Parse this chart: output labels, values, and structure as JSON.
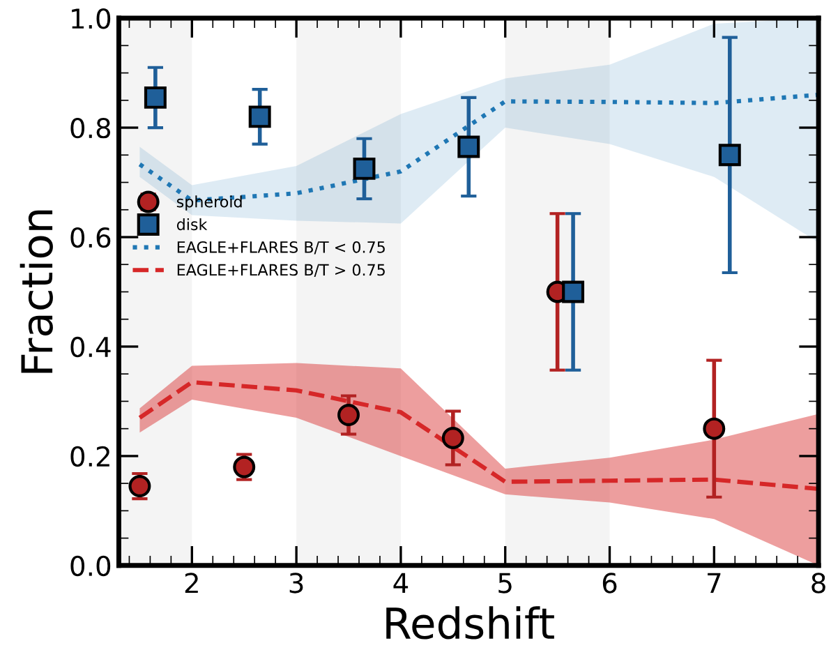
{
  "chart_data": {
    "type": "scatter",
    "xlabel": "Redshift",
    "ylabel": "Fraction",
    "xlim": [
      1.3,
      8
    ],
    "ylim": [
      0,
      1
    ],
    "xticks": [
      2,
      3,
      4,
      5,
      6,
      7,
      8
    ],
    "yticks": [
      {
        "value": 0,
        "label": "0.0"
      },
      0.2,
      0.4,
      0.6,
      0.8,
      {
        "value": 1,
        "label": "1.0"
      }
    ],
    "grid": false,
    "legend": "left",
    "bands": [
      {
        "axis": "x",
        "from": 1.3,
        "to": 2,
        "color": "#f4f4f4"
      },
      {
        "axis": "x",
        "from": 3,
        "to": 4,
        "color": "#f4f4f4"
      },
      {
        "axis": "x",
        "from": 5,
        "to": 6,
        "color": "#f4f4f4"
      }
    ],
    "series": [
      {
        "name": "spheroid",
        "marker": "circle",
        "color": "#b22222",
        "x": [
          1.5,
          2.5,
          3.5,
          4.5,
          5.5,
          7.0
        ],
        "values": [
          0.145,
          0.18,
          0.275,
          0.233,
          0.5,
          0.25
        ],
        "errors": [
          0.023,
          0.023,
          0.035,
          0.049,
          0.143,
          0.125
        ]
      },
      {
        "name": "disk",
        "marker": "square",
        "color": "#1f5f99",
        "x": [
          1.65,
          2.65,
          3.65,
          4.65,
          5.65,
          7.15
        ],
        "values": [
          0.855,
          0.82,
          0.725,
          0.765,
          0.5,
          0.75
        ],
        "errors": [
          [
            0.8,
            0.91
          ],
          [
            0.77,
            0.87
          ],
          [
            0.67,
            0.78
          ],
          [
            0.675,
            0.855
          ],
          [
            0.357,
            0.643
          ],
          [
            0.535,
            0.965
          ]
        ]
      },
      {
        "name": "EAGLE+FLARES B/T < 0.75",
        "type": "line",
        "line_style": "dotted",
        "color": "#1f77b4",
        "x": [
          1.5,
          2,
          3,
          4,
          5,
          6,
          7,
          8
        ],
        "values": [
          0.733,
          0.667,
          0.68,
          0.72,
          0.848,
          0.847,
          0.845,
          0.86
        ],
        "lower": [
          0.71,
          0.64,
          0.63,
          0.625,
          0.8,
          0.77,
          0.71,
          0.59
        ],
        "upper": [
          0.765,
          0.695,
          0.73,
          0.825,
          0.89,
          0.915,
          0.99,
          1.0
        ]
      },
      {
        "name": "EAGLE+FLARES B/T > 0.75",
        "type": "line",
        "line_style": "dashed",
        "color": "#d62728",
        "x": [
          1.5,
          2,
          3,
          4,
          5,
          6,
          7,
          8
        ],
        "values": [
          0.27,
          0.335,
          0.32,
          0.28,
          0.153,
          0.155,
          0.157,
          0.14
        ],
        "lower": [
          0.243,
          0.303,
          0.27,
          0.2,
          0.13,
          0.115,
          0.085,
          0.0
        ],
        "upper": [
          0.287,
          0.365,
          0.37,
          0.36,
          0.177,
          0.197,
          0.23,
          0.277
        ]
      }
    ]
  }
}
